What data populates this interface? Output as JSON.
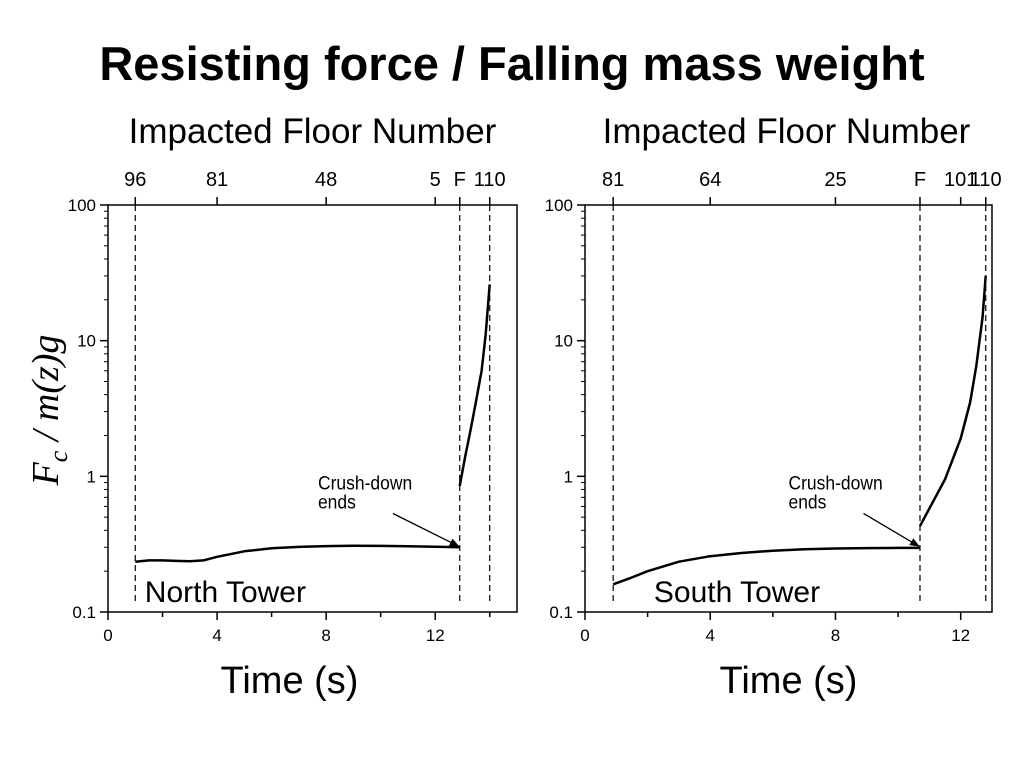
{
  "title": "Resisting force / Falling mass weight",
  "ylabel": {
    "main": "F",
    "sub": "c",
    "rest": " / m(z)g"
  },
  "chart_data": [
    {
      "type": "line",
      "panel_label": "North Tower",
      "xlabel": "Time (s)",
      "x2label": "Impacted Floor Number",
      "xlim": [
        0,
        15
      ],
      "xticks": [
        0,
        4,
        8,
        12
      ],
      "ylim": [
        0.1,
        100
      ],
      "yscale": "log",
      "yticks": [
        0.1,
        1,
        10,
        100
      ],
      "yticklabels": [
        "0.1",
        "1",
        "10",
        "100"
      ],
      "top_ticks": [
        {
          "label": "96",
          "x": 1.0
        },
        {
          "label": "81",
          "x": 4.0
        },
        {
          "label": "48",
          "x": 8.0
        },
        {
          "label": "5",
          "x": 12.0
        },
        {
          "label": "F",
          "x": 12.9
        },
        {
          "label": "110",
          "x": 14.0
        }
      ],
      "vlines": [
        1.0,
        12.9,
        14.0
      ],
      "annotation": {
        "lines": [
          "Crush-down",
          "ends"
        ],
        "text_x": 7.7,
        "text_y": 0.8,
        "arrow_to": [
          12.9,
          0.3
        ]
      },
      "series": [
        {
          "x": [
            1.0,
            1.5,
            2.0,
            2.5,
            3.0,
            3.5,
            4.0,
            5.0,
            6.0,
            7.0,
            8.0,
            9.0,
            10.0,
            11.0,
            12.0,
            12.9
          ],
          "y": [
            0.235,
            0.24,
            0.24,
            0.238,
            0.237,
            0.24,
            0.255,
            0.28,
            0.295,
            0.302,
            0.306,
            0.308,
            0.307,
            0.305,
            0.303,
            0.3
          ]
        },
        {
          "x": [
            12.9,
            13.1,
            13.3,
            13.5,
            13.7,
            13.85,
            14.0
          ],
          "y": [
            0.85,
            1.4,
            2.2,
            3.6,
            6.0,
            11.0,
            26.0
          ]
        }
      ]
    },
    {
      "type": "line",
      "panel_label": "South Tower",
      "xlabel": "Time (s)",
      "x2label": "Impacted Floor Number",
      "xlim": [
        0,
        13
      ],
      "xticks": [
        0,
        4,
        8,
        12
      ],
      "ylim": [
        0.1,
        100
      ],
      "yscale": "log",
      "yticks": [
        0.1,
        1,
        10,
        100
      ],
      "yticklabels": [
        "0.1",
        "1",
        "10",
        "100"
      ],
      "top_ticks": [
        {
          "label": "81",
          "x": 0.9
        },
        {
          "label": "64",
          "x": 4.0
        },
        {
          "label": "25",
          "x": 8.0
        },
        {
          "label": "F",
          "x": 10.7
        },
        {
          "label": "101",
          "x": 12.0
        },
        {
          "label": "110",
          "x": 12.8
        }
      ],
      "vlines": [
        0.9,
        10.7,
        12.8
      ],
      "annotation": {
        "lines": [
          "Crush-down",
          "ends"
        ],
        "text_x": 6.5,
        "text_y": 0.8,
        "arrow_to": [
          10.7,
          0.3
        ]
      },
      "series": [
        {
          "x": [
            0.9,
            1.5,
            2.0,
            3.0,
            4.0,
            5.0,
            6.0,
            7.0,
            8.0,
            9.0,
            10.0,
            10.7
          ],
          "y": [
            0.16,
            0.18,
            0.2,
            0.235,
            0.258,
            0.272,
            0.283,
            0.29,
            0.294,
            0.296,
            0.297,
            0.297
          ]
        },
        {
          "x": [
            10.7,
            11.0,
            11.5,
            12.0,
            12.3,
            12.5,
            12.7,
            12.8
          ],
          "y": [
            0.43,
            0.58,
            0.95,
            1.9,
            3.5,
            6.5,
            15.0,
            30.0
          ]
        }
      ]
    }
  ]
}
